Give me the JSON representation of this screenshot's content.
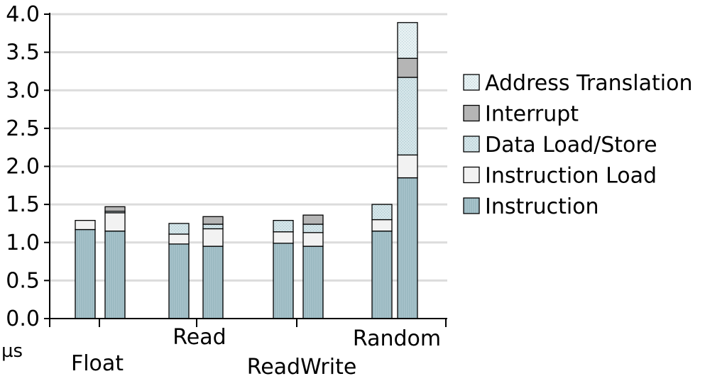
{
  "chart_data": {
    "type": "bar",
    "stacked": true,
    "unit_label": "µs",
    "ylim": [
      0,
      4.0
    ],
    "yticks": [
      "0.0",
      "0.5",
      "1.0",
      "1.5",
      "2.0",
      "2.5",
      "3.0",
      "3.5",
      "4.0"
    ],
    "grid": true,
    "legend_position": "right",
    "groups": [
      "Float",
      "Read",
      "ReadWrite",
      "Random"
    ],
    "stack_order": [
      "Instruction",
      "Instruction Load",
      "Data Load/Store",
      "Interrupt",
      "Address Translation"
    ],
    "legend_order": [
      "Address Translation",
      "Interrupt",
      "Data Load/Store",
      "Instruction Load",
      "Instruction"
    ],
    "bars": [
      {
        "group": "Float",
        "segments": {
          "Instruction": 1.17,
          "Instruction Load": 0.12,
          "Data Load/Store": 0.0,
          "Interrupt": 0.0,
          "Address Translation": 0.0
        }
      },
      {
        "group": "Float",
        "segments": {
          "Instruction": 1.15,
          "Instruction Load": 0.24,
          "Data Load/Store": 0.02,
          "Interrupt": 0.06,
          "Address Translation": 0.0
        }
      },
      {
        "group": "Read",
        "segments": {
          "Instruction": 0.98,
          "Instruction Load": 0.13,
          "Data Load/Store": 0.14,
          "Interrupt": 0.0,
          "Address Translation": 0.0
        }
      },
      {
        "group": "Read",
        "segments": {
          "Instruction": 0.95,
          "Instruction Load": 0.23,
          "Data Load/Store": 0.06,
          "Interrupt": 0.1,
          "Address Translation": 0.0
        }
      },
      {
        "group": "ReadWrite",
        "segments": {
          "Instruction": 0.99,
          "Instruction Load": 0.15,
          "Data Load/Store": 0.15,
          "Interrupt": 0.0,
          "Address Translation": 0.0
        }
      },
      {
        "group": "ReadWrite",
        "segments": {
          "Instruction": 0.95,
          "Instruction Load": 0.18,
          "Data Load/Store": 0.11,
          "Interrupt": 0.12,
          "Address Translation": 0.0
        }
      },
      {
        "group": "Random",
        "segments": {
          "Instruction": 1.15,
          "Instruction Load": 0.15,
          "Data Load/Store": 0.2,
          "Interrupt": 0.0,
          "Address Translation": 0.0
        }
      },
      {
        "group": "Random",
        "segments": {
          "Instruction": 1.85,
          "Instruction Load": 0.3,
          "Data Load/Store": 1.02,
          "Interrupt": 0.25,
          "Address Translation": 0.47
        }
      }
    ],
    "colors": {
      "Instruction": "#a9c4cc",
      "Instruction Load": "#f2f2f2",
      "Data Load/Store": "#d3e4e8",
      "Interrupt": "#b5b5b5",
      "Address Translation": "#e1ecef",
      "grid": "#dcdcdc",
      "axis": "#000000"
    }
  }
}
